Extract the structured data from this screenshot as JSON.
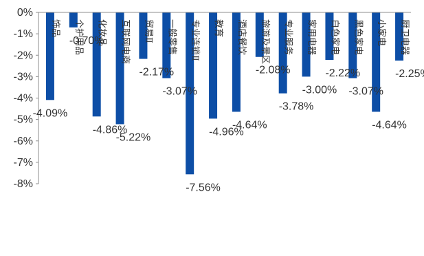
{
  "chart_data": {
    "type": "bar",
    "categories": [
      "饰品",
      "个护用品",
      "化妆品",
      "互联网电商",
      "贸易Ⅱ",
      "一般零售",
      "专业连锁Ⅱ",
      "教育",
      "酒店餐饮",
      "旅游及景区",
      "专业服务",
      "家用电器",
      "白色家电",
      "黑色家电",
      "小家电",
      "厨卫电器"
    ],
    "values": [
      -4.09,
      -0.7,
      -4.86,
      -5.22,
      -2.17,
      -3.07,
      -7.56,
      -4.96,
      -4.64,
      -2.08,
      -3.78,
      -3.0,
      -2.22,
      -3.07,
      -4.64,
      -2.25
    ],
    "data_labels": [
      "-4.09%",
      "-0.70%",
      "-4.86%",
      "-5.22%",
      "-2.17%",
      "-3.07%",
      "-7.56%",
      "-4.96%",
      "-4.64%",
      "-2.08%",
      "-3.78%",
      "-3.00%",
      "-2.22%",
      "-3.07%",
      "-4.64%",
      "-2.25%"
    ],
    "ylim": [
      -8,
      0
    ],
    "y_ticks": [
      0,
      -1,
      -2,
      -3,
      -4,
      -5,
      -6,
      -7,
      -8
    ],
    "y_tick_labels": [
      "0%",
      "-1%",
      "-2%",
      "-3%",
      "-4%",
      "-5%",
      "-6%",
      "-7%",
      "-8%"
    ],
    "bar_color": "#0d4ea6",
    "title": "",
    "xlabel": "",
    "ylabel": "",
    "grid": false,
    "legend": "none"
  }
}
